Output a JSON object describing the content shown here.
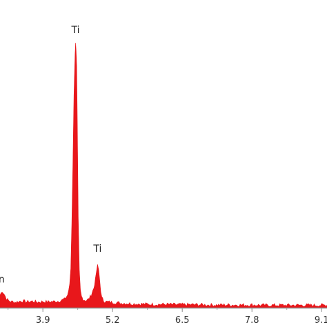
{
  "chart_data": {
    "type": "area",
    "title": "",
    "xlabel": "",
    "ylabel": "",
    "xlim": [
      3.1,
      9.2
    ],
    "ylim": [
      0,
      1.0
    ],
    "x_ticks": [
      3.9,
      5.2,
      6.5,
      7.8,
      9.1
    ],
    "x_tick_labels": [
      "3.9",
      "5.2",
      "6.5",
      "7.8",
      "9.1"
    ],
    "grid": false,
    "series": [
      {
        "color": "#e8171b",
        "x": [
          3.1,
          3.14,
          3.18,
          3.22,
          3.26,
          3.3,
          3.4,
          3.5,
          3.6,
          3.7,
          3.8,
          3.9,
          4.0,
          4.1,
          4.2,
          4.3,
          4.36,
          4.4,
          4.42,
          4.44,
          4.46,
          4.48,
          4.5,
          4.51,
          4.52,
          4.53,
          4.54,
          4.55,
          4.56,
          4.58,
          4.6,
          4.62,
          4.65,
          4.7,
          4.75,
          4.8,
          4.85,
          4.88,
          4.9,
          4.92,
          4.94,
          4.96,
          4.98,
          5.0,
          5.03,
          5.06,
          5.1,
          5.2,
          5.4,
          5.6,
          5.8,
          6.0,
          6.2,
          6.4,
          6.6,
          6.8,
          7.0,
          7.2,
          7.4,
          7.6,
          7.8,
          8.0,
          8.2,
          8.4,
          8.6,
          8.8,
          9.0,
          9.2
        ],
        "y": [
          0.045,
          0.06,
          0.048,
          0.032,
          0.025,
          0.022,
          0.02,
          0.024,
          0.021,
          0.023,
          0.02,
          0.022,
          0.021,
          0.022,
          0.024,
          0.03,
          0.045,
          0.08,
          0.14,
          0.3,
          0.52,
          0.76,
          0.9,
          0.95,
          0.92,
          0.86,
          0.7,
          0.5,
          0.32,
          0.13,
          0.06,
          0.04,
          0.03,
          0.026,
          0.03,
          0.045,
          0.07,
          0.1,
          0.13,
          0.15,
          0.135,
          0.1,
          0.06,
          0.035,
          0.026,
          0.022,
          0.021,
          0.019,
          0.016,
          0.014,
          0.013,
          0.012,
          0.012,
          0.011,
          0.011,
          0.011,
          0.01,
          0.01,
          0.01,
          0.01,
          0.01,
          0.009,
          0.009,
          0.009,
          0.009,
          0.009,
          0.009,
          0.009
        ]
      }
    ],
    "annotations": [
      {
        "text": "Ti",
        "x": 4.51,
        "y": 0.97
      },
      {
        "text": "Ti",
        "x": 4.92,
        "y": 0.19
      },
      {
        "text": "n",
        "x": 3.13,
        "y": 0.08
      }
    ]
  }
}
